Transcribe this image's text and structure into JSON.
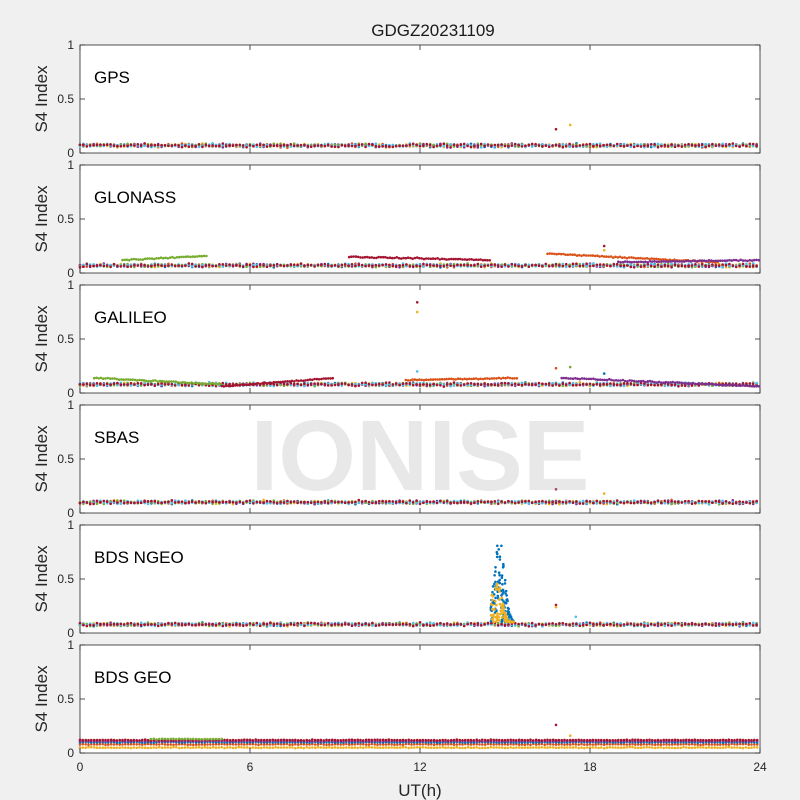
{
  "figure": {
    "title": "GDGZ20231109",
    "watermark": "IONISE"
  },
  "colors": [
    "#0072BD",
    "#D95319",
    "#EDB120",
    "#7E2F8E",
    "#77AC30",
    "#4DBEEE",
    "#A2142F"
  ],
  "chart_data": [
    {
      "type": "scatter",
      "title": "GPS",
      "ylabel": "S4 Index",
      "xlabel": "",
      "xlim": [
        0,
        24
      ],
      "ylim": [
        0,
        1
      ],
      "yticks": [
        0,
        0.5,
        1
      ],
      "ytick_labels": [
        "0",
        "0.5",
        "1"
      ],
      "xticks": [
        0,
        6,
        12,
        18,
        24
      ],
      "xtick_labels": [],
      "baseline": 0.07,
      "outliers": [
        {
          "x": 16.8,
          "y": 0.22
        },
        {
          "x": 17.3,
          "y": 0.26
        }
      ]
    },
    {
      "type": "scatter",
      "title": "GLONASS",
      "ylabel": "S4 Index",
      "xlabel": "",
      "xlim": [
        0,
        24
      ],
      "ylim": [
        0,
        1
      ],
      "yticks": [
        0,
        0.5,
        1
      ],
      "ytick_labels": [
        "0",
        "0.5",
        "1"
      ],
      "xticks": [
        0,
        6,
        12,
        18,
        24
      ],
      "xtick_labels": [],
      "baseline": 0.07,
      "arcs": [
        {
          "x0": 1.5,
          "x1": 4.5,
          "y0": 0.12,
          "y1": 0.16
        },
        {
          "x0": 9.5,
          "x1": 14.5,
          "y0": 0.15,
          "y1": 0.12
        },
        {
          "x0": 16.5,
          "x1": 22.5,
          "y0": 0.18,
          "y1": 0.1
        },
        {
          "x0": 19.0,
          "x1": 24.0,
          "y0": 0.1,
          "y1": 0.12
        }
      ],
      "outliers": [
        {
          "x": 18.5,
          "y": 0.25
        },
        {
          "x": 18.5,
          "y": 0.21
        }
      ]
    },
    {
      "type": "scatter",
      "title": "GALILEO",
      "ylabel": "S4 Index",
      "xlabel": "",
      "xlim": [
        0,
        24
      ],
      "ylim": [
        0,
        1
      ],
      "yticks": [
        0,
        0.5,
        1
      ],
      "ytick_labels": [
        "0",
        "0.5",
        "1"
      ],
      "xticks": [
        0,
        6,
        12,
        18,
        24
      ],
      "xtick_labels": [],
      "baseline": 0.08,
      "arcs": [
        {
          "x0": 0.5,
          "x1": 5.0,
          "y0": 0.14,
          "y1": 0.08
        },
        {
          "x0": 5.0,
          "x1": 9.0,
          "y0": 0.06,
          "y1": 0.14
        },
        {
          "x0": 11.5,
          "x1": 15.5,
          "y0": 0.12,
          "y1": 0.14
        },
        {
          "x0": 17.0,
          "x1": 24.0,
          "y0": 0.14,
          "y1": 0.06
        }
      ],
      "outliers": [
        {
          "x": 11.9,
          "y": 0.84
        },
        {
          "x": 11.9,
          "y": 0.75
        },
        {
          "x": 11.9,
          "y": 0.2
        },
        {
          "x": 16.8,
          "y": 0.23
        },
        {
          "x": 17.3,
          "y": 0.24
        },
        {
          "x": 18.5,
          "y": 0.18
        }
      ]
    },
    {
      "type": "scatter",
      "title": "SBAS",
      "ylabel": "S4 Index",
      "xlabel": "",
      "xlim": [
        0,
        24
      ],
      "ylim": [
        0,
        1
      ],
      "yticks": [
        0,
        0.5,
        1
      ],
      "ytick_labels": [
        "0",
        "0.5",
        "1"
      ],
      "xticks": [
        0,
        6,
        12,
        18,
        24
      ],
      "xtick_labels": [],
      "baseline": 0.1,
      "outliers": [
        {
          "x": 16.8,
          "y": 0.22
        },
        {
          "x": 18.5,
          "y": 0.18
        }
      ]
    },
    {
      "type": "scatter",
      "title": "BDS NGEO",
      "ylabel": "S4 Index",
      "xlabel": "",
      "xlim": [
        0,
        24
      ],
      "ylim": [
        0,
        1
      ],
      "yticks": [
        0,
        0.5,
        1
      ],
      "ytick_labels": [
        "0",
        "0.5",
        "1"
      ],
      "xticks": [
        0,
        6,
        12,
        18,
        24
      ],
      "xtick_labels": [],
      "baseline": 0.08,
      "spike": {
        "x0": 14.5,
        "x1": 15.3,
        "peak_x": 14.8,
        "max_blue": 0.88,
        "max_yellow": 0.5
      },
      "outliers": [
        {
          "x": 16.8,
          "y": 0.26
        },
        {
          "x": 16.8,
          "y": 0.24
        },
        {
          "x": 17.5,
          "y": 0.15
        }
      ]
    },
    {
      "type": "scatter",
      "title": "BDS GEO",
      "ylabel": "S4 Index",
      "xlabel": "UT(h)",
      "xlim": [
        0,
        24
      ],
      "ylim": [
        0,
        1
      ],
      "yticks": [
        0,
        0.5,
        1
      ],
      "ytick_labels": [
        "0",
        "0.5",
        "1"
      ],
      "xticks": [
        0,
        6,
        12,
        18,
        24
      ],
      "xtick_labels": [
        "0",
        "6",
        "12",
        "18",
        "24"
      ],
      "geo_levels": [
        0.05,
        0.08,
        0.1,
        0.11,
        0.12
      ],
      "outliers": [
        {
          "x": 16.8,
          "y": 0.26
        },
        {
          "x": 17.3,
          "y": 0.16
        }
      ]
    }
  ]
}
